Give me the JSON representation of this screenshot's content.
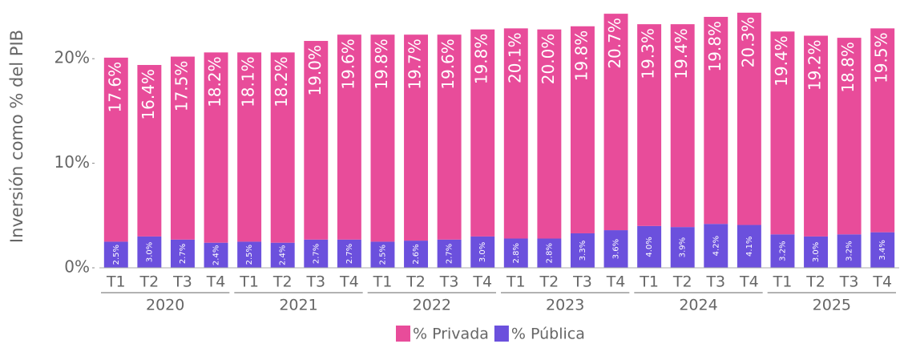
{
  "chart_data": {
    "type": "stacked_bar",
    "y_label": "Inversión como % del PIB",
    "categories": [
      "T1",
      "T2",
      "T3",
      "T4",
      "T1",
      "T2",
      "T3",
      "T4",
      "T1",
      "T2",
      "T3",
      "T4",
      "T1",
      "T2",
      "T3",
      "T4",
      "T1",
      "T2",
      "T3",
      "T4",
      "T1",
      "T2",
      "T3",
      "T4"
    ],
    "years": [
      "2020",
      "2021",
      "2022",
      "2023",
      "2024",
      "2025"
    ],
    "series": [
      {
        "name": "% Pública",
        "color": "#6b50dd",
        "values": [
          2.5,
          3.0,
          2.7,
          2.4,
          2.5,
          2.4,
          2.7,
          2.7,
          2.5,
          2.6,
          2.7,
          3.0,
          2.8,
          2.8,
          3.3,
          3.6,
          4.0,
          3.9,
          4.2,
          4.1,
          3.2,
          3.0,
          3.2,
          3.4
        ],
        "value_labels": [
          "2.5%",
          "3.0%",
          "2.7%",
          "2.4%",
          "2.5%",
          "2.4%",
          "2.7%",
          "2.7%",
          "2.5%",
          "2.6%",
          "2.7%",
          "3.0%",
          "2.8%",
          "2.8%",
          "3.3%",
          "3.6%",
          "4.0%",
          "3.9%",
          "4.2%",
          "4.1%",
          "3.2%",
          "3.0%",
          "3.2%",
          "3.4%"
        ]
      },
      {
        "name": "% Privada",
        "color": "#e84c9a",
        "values": [
          17.6,
          16.4,
          17.5,
          18.2,
          18.1,
          18.2,
          19.0,
          19.6,
          19.8,
          19.7,
          19.6,
          19.8,
          20.1,
          20.0,
          19.8,
          20.7,
          19.3,
          19.4,
          19.8,
          20.3,
          19.4,
          19.2,
          18.8,
          19.5
        ],
        "value_labels": [
          "17.6%",
          "16.4%",
          "17.5%",
          "18.2%",
          "18.1%",
          "18.2%",
          "19.0%",
          "19.6%",
          "19.8%",
          "19.7%",
          "19.6%",
          "19.8%",
          "20.1%",
          "20.0%",
          "19.8%",
          "20.7%",
          "19.3%",
          "19.4%",
          "19.8%",
          "20.3%",
          "19.4%",
          "19.2%",
          "18.8%",
          "19.5%"
        ]
      }
    ],
    "legend_order": [
      1,
      0
    ],
    "ylim": [
      0,
      25
    ],
    "yticks": [
      {
        "value": 0,
        "label": "0%"
      },
      {
        "value": 10,
        "label": "10%"
      },
      {
        "value": 20,
        "label": "20%"
      }
    ]
  }
}
